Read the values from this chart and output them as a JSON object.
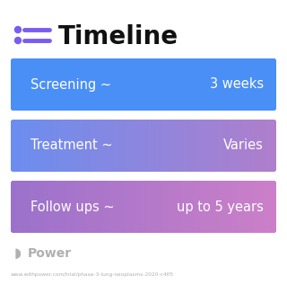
{
  "title": "Timeline",
  "title_fontsize": 20,
  "title_color": "#111111",
  "background_color": "#ffffff",
  "icon_color": "#7b5cf0",
  "rows": [
    {
      "label": "Screening ~",
      "value": "3 weeks",
      "color_left": "#4a8ff5",
      "color_right": "#4a8ff5"
    },
    {
      "label": "Treatment ~",
      "value": "Varies",
      "color_left": "#6b8ef0",
      "color_right": "#b07fcc"
    },
    {
      "label": "Follow ups ~",
      "value": "up to 5 years",
      "color_left": "#9b72cc",
      "color_right": "#cc80c8"
    }
  ],
  "watermark_text": "Power",
  "watermark_color": "#b0b0b0",
  "url_text": "www.withpower.com/trial/phase-3-lung-neoplasms-2020-c4fl5",
  "url_color": "#b0b0b0",
  "row_text_color": "#ffffff",
  "row_label_fontsize": 10.5,
  "row_value_fontsize": 10.5
}
